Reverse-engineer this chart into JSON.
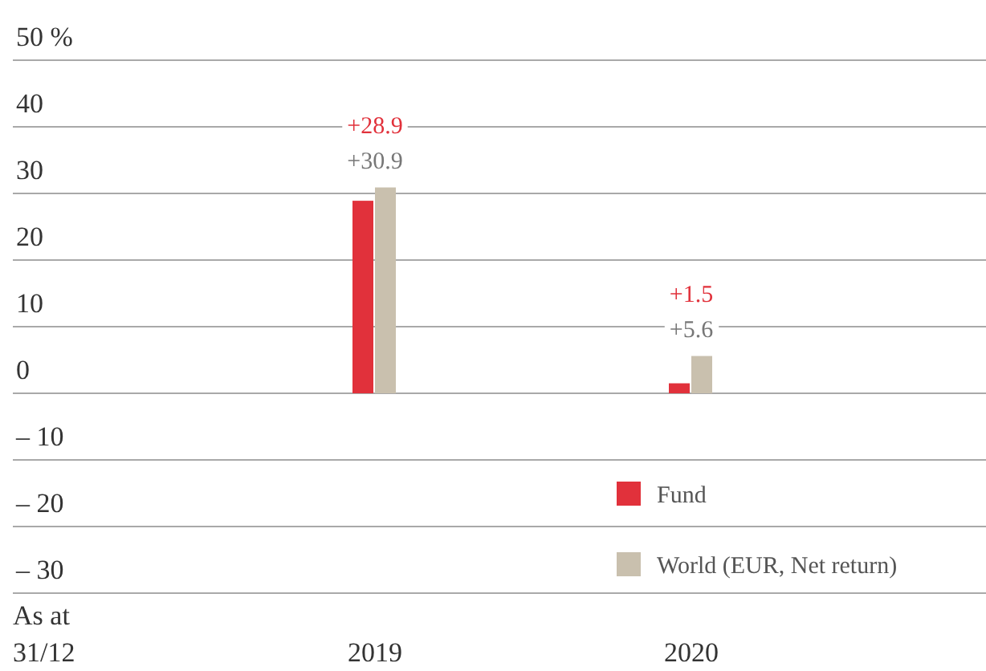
{
  "chart_data": {
    "type": "bar",
    "categories": [
      "2019",
      "2020"
    ],
    "series": [
      {
        "name": "Fund",
        "color": "#e1313b",
        "values": [
          28.9,
          1.5
        ],
        "value_labels": [
          "+28.9",
          "+1.5"
        ]
      },
      {
        "name": "World (EUR, Net return)",
        "color": "#c9c0ae",
        "values": [
          30.9,
          5.6
        ],
        "value_labels": [
          "+30.9",
          "+5.6"
        ]
      }
    ],
    "xlabel": "As at 31/12",
    "ylim": [
      -30,
      50
    ],
    "yticks": [
      {
        "value": 50,
        "label": "50 %"
      },
      40,
      30,
      20,
      10,
      0,
      {
        "value": -10,
        "label": "– 10"
      },
      {
        "value": -20,
        "label": "– 20"
      },
      {
        "value": -30,
        "label": "– 30"
      }
    ],
    "grid": "y",
    "legend": "bottom right"
  }
}
